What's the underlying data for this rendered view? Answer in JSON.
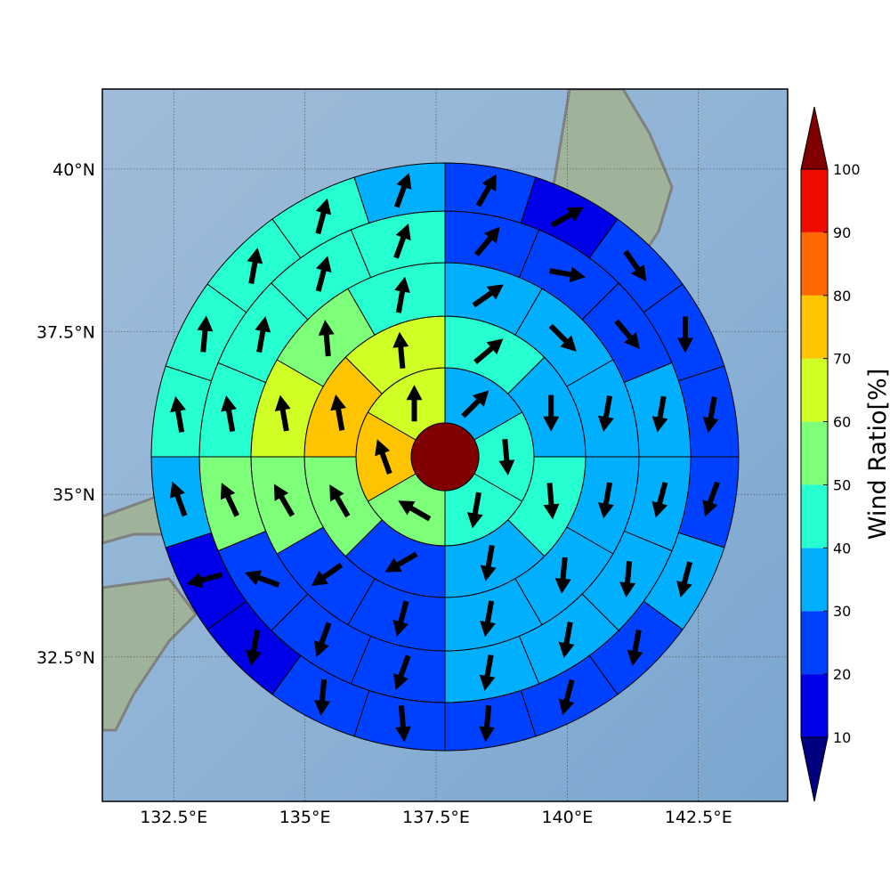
{
  "chart_data": {
    "type": "polar-sector-map",
    "xlim": [
      131.14,
      144.2
    ],
    "ylim": [
      30.28,
      41.23
    ],
    "xticks": [
      {
        "value": 132.5,
        "label": "132.5°E"
      },
      {
        "value": 135,
        "label": "135°E"
      },
      {
        "value": 137.5,
        "label": "137.5°E"
      },
      {
        "value": 140,
        "label": "140°E"
      },
      {
        "value": 142.5,
        "label": "142.5°E"
      }
    ],
    "yticks": [
      {
        "value": 32.5,
        "label": "32.5°N"
      },
      {
        "value": 35,
        "label": "35°N"
      },
      {
        "value": 37.5,
        "label": "37.5°N"
      },
      {
        "value": 40,
        "label": "40°N"
      }
    ],
    "grid": true,
    "colorbar": {
      "label": "Wind Ratio[%]",
      "ticks": [
        10,
        20,
        30,
        40,
        50,
        60,
        70,
        80,
        90,
        100
      ],
      "colors": [
        "#000080",
        "#0000e8",
        "#0040ff",
        "#00b0ff",
        "#26ffd0",
        "#7dff7a",
        "#d0ff26",
        "#ffc400",
        "#ff6800",
        "#f00d00",
        "#800000"
      ],
      "extend": "both"
    },
    "rings": [
      {
        "values": [
          35,
          45,
          42,
          55,
          75,
          65
        ],
        "directions": [
          45,
          175,
          190,
          300,
          340,
          0
        ]
      },
      {
        "values": [
          45,
          35,
          45,
          35,
          25,
          55,
          75,
          65
        ],
        "directions": [
          50,
          180,
          175,
          190,
          240,
          330,
          350,
          355
        ]
      },
      {
        "values": [
          35,
          35,
          35,
          35,
          32,
          35,
          25,
          25,
          55,
          62,
          55,
          45
        ],
        "directions": [
          55,
          135,
          190,
          190,
          185,
          190,
          195,
          235,
          330,
          350,
          355,
          10
        ]
      },
      {
        "values": [
          28,
          25,
          25,
          35,
          35,
          35,
          35,
          35,
          25,
          25,
          25,
          52,
          45,
          45,
          45,
          42
        ],
        "directions": [
          40,
          100,
          140,
          190,
          195,
          185,
          190,
          190,
          200,
          200,
          290,
          335,
          350,
          10,
          15,
          20
        ]
      },
      {
        "values": [
          25,
          15,
          25,
          25,
          22,
          25,
          35,
          25,
          25,
          25,
          25,
          22,
          15,
          15,
          35,
          45,
          45,
          45,
          42,
          35
        ],
        "directions": [
          30,
          60,
          145,
          180,
          190,
          200,
          195,
          190,
          195,
          185,
          175,
          185,
          190,
          255,
          340,
          350,
          5,
          10,
          15,
          20
        ]
      }
    ]
  }
}
